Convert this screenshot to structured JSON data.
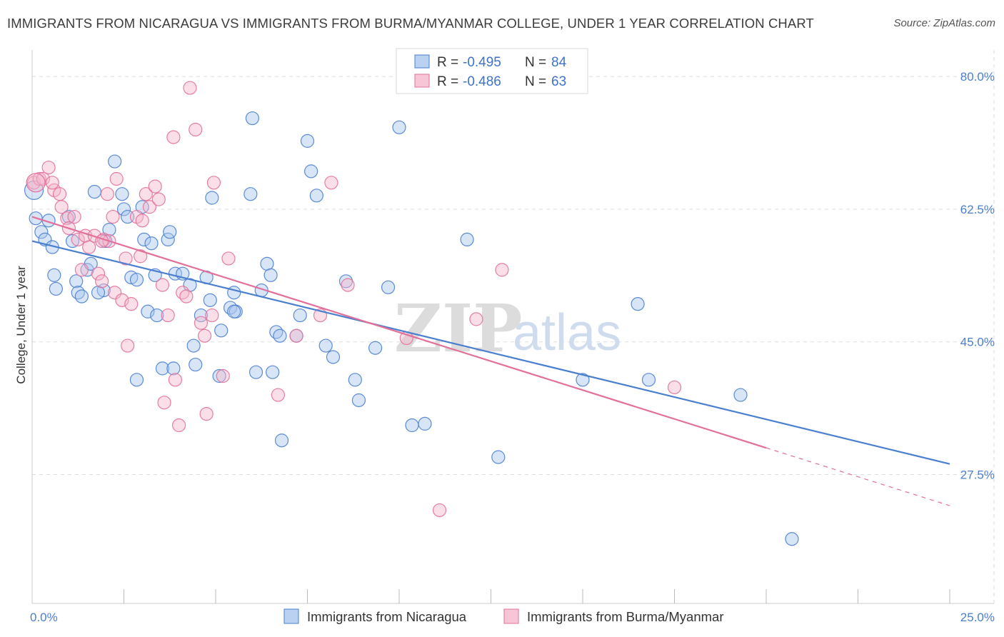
{
  "title": "IMMIGRANTS FROM NICARAGUA VS IMMIGRANTS FROM BURMA/MYANMAR COLLEGE, UNDER 1 YEAR CORRELATION CHART",
  "source": "Source: ZipAtlas.com",
  "watermark": {
    "zip": "ZIP",
    "atlas": "atlas"
  },
  "colors": {
    "blue": "#4a7fd0",
    "pink": "#e3709a",
    "blue_fill": "#a9c6ee",
    "pink_fill": "#f4b8cc",
    "grid": "#dddddd"
  },
  "chart_data": {
    "type": "scatter",
    "xlabel": "",
    "ylabel": "College, Under 1 year",
    "xlim": [
      0,
      25
    ],
    "ylim": [
      10.5,
      83.5
    ],
    "x_tick_labels": [
      {
        "value": 0,
        "label": "0.0%"
      },
      {
        "value": 25,
        "label": "25.0%"
      }
    ],
    "y_tick_labels": [
      {
        "value": 80,
        "label": "80.0%"
      },
      {
        "value": 62.5,
        "label": "62.5%"
      },
      {
        "value": 45,
        "label": "45.0%"
      },
      {
        "value": 27.5,
        "label": "27.5%"
      }
    ],
    "x_minor_ticks": [
      2.5,
      5,
      7.5,
      10,
      12.5,
      15,
      17.5,
      20,
      22.5,
      25
    ],
    "grid": true,
    "legend_position": "top-center",
    "legend": [
      {
        "r_label": "R = ",
        "r_value": "-0.495",
        "n_label": "N = ",
        "n_value": "84"
      },
      {
        "r_label": "R = ",
        "r_value": "-0.486",
        "n_label": "N = ",
        "n_value": "63"
      }
    ],
    "series": [
      {
        "name": "Immigrants from Nicaragua",
        "color": "#4a7fd0",
        "trend": {
          "x": [
            0,
            25
          ],
          "y": [
            58.3,
            28.9
          ],
          "dashed_from": null
        },
        "points": [
          [
            0.05,
            65.0
          ],
          [
            0.1,
            61.3
          ],
          [
            0.25,
            59.5
          ],
          [
            0.35,
            58.5
          ],
          [
            0.45,
            61.0
          ],
          [
            0.55,
            57.5
          ],
          [
            0.6,
            53.8
          ],
          [
            0.65,
            52.0
          ],
          [
            1.0,
            61.5
          ],
          [
            1.1,
            58.3
          ],
          [
            1.2,
            53.0
          ],
          [
            1.25,
            51.5
          ],
          [
            1.35,
            51.0
          ],
          [
            1.5,
            54.5
          ],
          [
            1.6,
            55.3
          ],
          [
            1.7,
            64.8
          ],
          [
            1.95,
            51.8
          ],
          [
            1.8,
            51.5
          ],
          [
            2.0,
            58.3
          ],
          [
            2.1,
            59.8
          ],
          [
            2.25,
            68.8
          ],
          [
            2.45,
            64.5
          ],
          [
            2.5,
            62.5
          ],
          [
            2.6,
            61.5
          ],
          [
            2.7,
            53.5
          ],
          [
            2.85,
            53.2
          ],
          [
            2.85,
            40.0
          ],
          [
            3.0,
            62.8
          ],
          [
            3.05,
            58.5
          ],
          [
            3.15,
            49.0
          ],
          [
            3.25,
            58.0
          ],
          [
            3.4,
            48.5
          ],
          [
            3.35,
            53.8
          ],
          [
            3.55,
            41.5
          ],
          [
            3.7,
            58.5
          ],
          [
            3.75,
            59.5
          ],
          [
            3.85,
            41.5
          ],
          [
            3.9,
            54.0
          ],
          [
            4.1,
            54.0
          ],
          [
            4.3,
            52.5
          ],
          [
            4.4,
            44.5
          ],
          [
            4.45,
            42.0
          ],
          [
            4.6,
            48.5
          ],
          [
            4.75,
            53.5
          ],
          [
            4.85,
            50.5
          ],
          [
            4.9,
            64.0
          ],
          [
            5.1,
            40.5
          ],
          [
            5.15,
            46.5
          ],
          [
            5.4,
            49.5
          ],
          [
            5.55,
            49.0
          ],
          [
            5.5,
            49.0
          ],
          [
            5.5,
            51.5
          ],
          [
            5.95,
            64.5
          ],
          [
            6.0,
            74.5
          ],
          [
            6.1,
            41.0
          ],
          [
            6.25,
            51.8
          ],
          [
            6.4,
            55.3
          ],
          [
            6.5,
            53.8
          ],
          [
            6.55,
            41.0
          ],
          [
            6.65,
            46.3
          ],
          [
            6.8,
            32.0
          ],
          [
            6.75,
            45.8
          ],
          [
            7.2,
            45.8
          ],
          [
            7.3,
            48.5
          ],
          [
            7.5,
            71.5
          ],
          [
            7.6,
            67.5
          ],
          [
            7.75,
            64.3
          ],
          [
            8.0,
            44.5
          ],
          [
            8.2,
            43.0
          ],
          [
            8.55,
            53.0
          ],
          [
            8.8,
            40.0
          ],
          [
            8.9,
            37.3
          ],
          [
            9.35,
            44.2
          ],
          [
            9.7,
            52.2
          ],
          [
            10.0,
            73.3
          ],
          [
            10.35,
            34.0
          ],
          [
            10.7,
            34.2
          ],
          [
            11.85,
            58.5
          ],
          [
            12.7,
            29.8
          ],
          [
            15.0,
            40.0
          ],
          [
            16.5,
            50.0
          ],
          [
            16.8,
            40.0
          ],
          [
            19.3,
            38.0
          ],
          [
            20.7,
            19.0
          ]
        ]
      },
      {
        "name": "Immigrants from Burma/Myanmar",
        "color": "#e3709a",
        "trend": {
          "x": [
            0,
            25
          ],
          "y": [
            61.5,
            23.4
          ],
          "dashed_from": 20.0
        },
        "points": [
          [
            0.05,
            66.0
          ],
          [
            0.2,
            66.5
          ],
          [
            0.3,
            66.5
          ],
          [
            0.45,
            68.0
          ],
          [
            0.6,
            65.0
          ],
          [
            0.75,
            64.5
          ],
          [
            0.8,
            62.8
          ],
          [
            0.95,
            61.3
          ],
          [
            1.0,
            60.0
          ],
          [
            1.15,
            61.5
          ],
          [
            1.25,
            58.5
          ],
          [
            1.35,
            54.5
          ],
          [
            1.45,
            59.0
          ],
          [
            1.55,
            57.5
          ],
          [
            1.7,
            59.0
          ],
          [
            1.8,
            54.0
          ],
          [
            1.9,
            53.0
          ],
          [
            1.95,
            58.5
          ],
          [
            2.05,
            64.5
          ],
          [
            2.1,
            58.3
          ],
          [
            2.2,
            61.5
          ],
          [
            2.25,
            51.5
          ],
          [
            2.3,
            66.5
          ],
          [
            2.45,
            50.5
          ],
          [
            2.55,
            56.0
          ],
          [
            2.6,
            44.5
          ],
          [
            2.7,
            50.0
          ],
          [
            2.85,
            61.5
          ],
          [
            2.95,
            56.3
          ],
          [
            3.0,
            61.0
          ],
          [
            3.1,
            64.5
          ],
          [
            3.2,
            62.8
          ],
          [
            3.35,
            65.5
          ],
          [
            3.45,
            63.8
          ],
          [
            3.55,
            52.5
          ],
          [
            3.6,
            37.0
          ],
          [
            3.7,
            48.5
          ],
          [
            3.85,
            72.0
          ],
          [
            3.9,
            40.0
          ],
          [
            4.0,
            34.0
          ],
          [
            4.1,
            51.5
          ],
          [
            4.2,
            51.0
          ],
          [
            4.3,
            78.5
          ],
          [
            4.45,
            73.0
          ],
          [
            4.6,
            47.5
          ],
          [
            4.7,
            45.8
          ],
          [
            4.75,
            35.5
          ],
          [
            4.9,
            48.5
          ],
          [
            4.95,
            66.0
          ],
          [
            5.2,
            40.5
          ],
          [
            5.35,
            56.0
          ],
          [
            6.7,
            38.0
          ],
          [
            7.2,
            45.8
          ],
          [
            7.85,
            48.5
          ],
          [
            8.15,
            66.0
          ],
          [
            8.6,
            52.5
          ],
          [
            10.2,
            45.5
          ],
          [
            12.1,
            48.0
          ],
          [
            12.8,
            54.5
          ],
          [
            11.1,
            22.8
          ],
          [
            17.5,
            39.0
          ],
          [
            0.55,
            66.0
          ],
          [
            1.9,
            58.3
          ]
        ]
      }
    ]
  },
  "bottom_legend": {
    "items": [
      {
        "label": "Immigrants from Nicaragua"
      },
      {
        "label": "Immigrants from Burma/Myanmar"
      }
    ]
  }
}
